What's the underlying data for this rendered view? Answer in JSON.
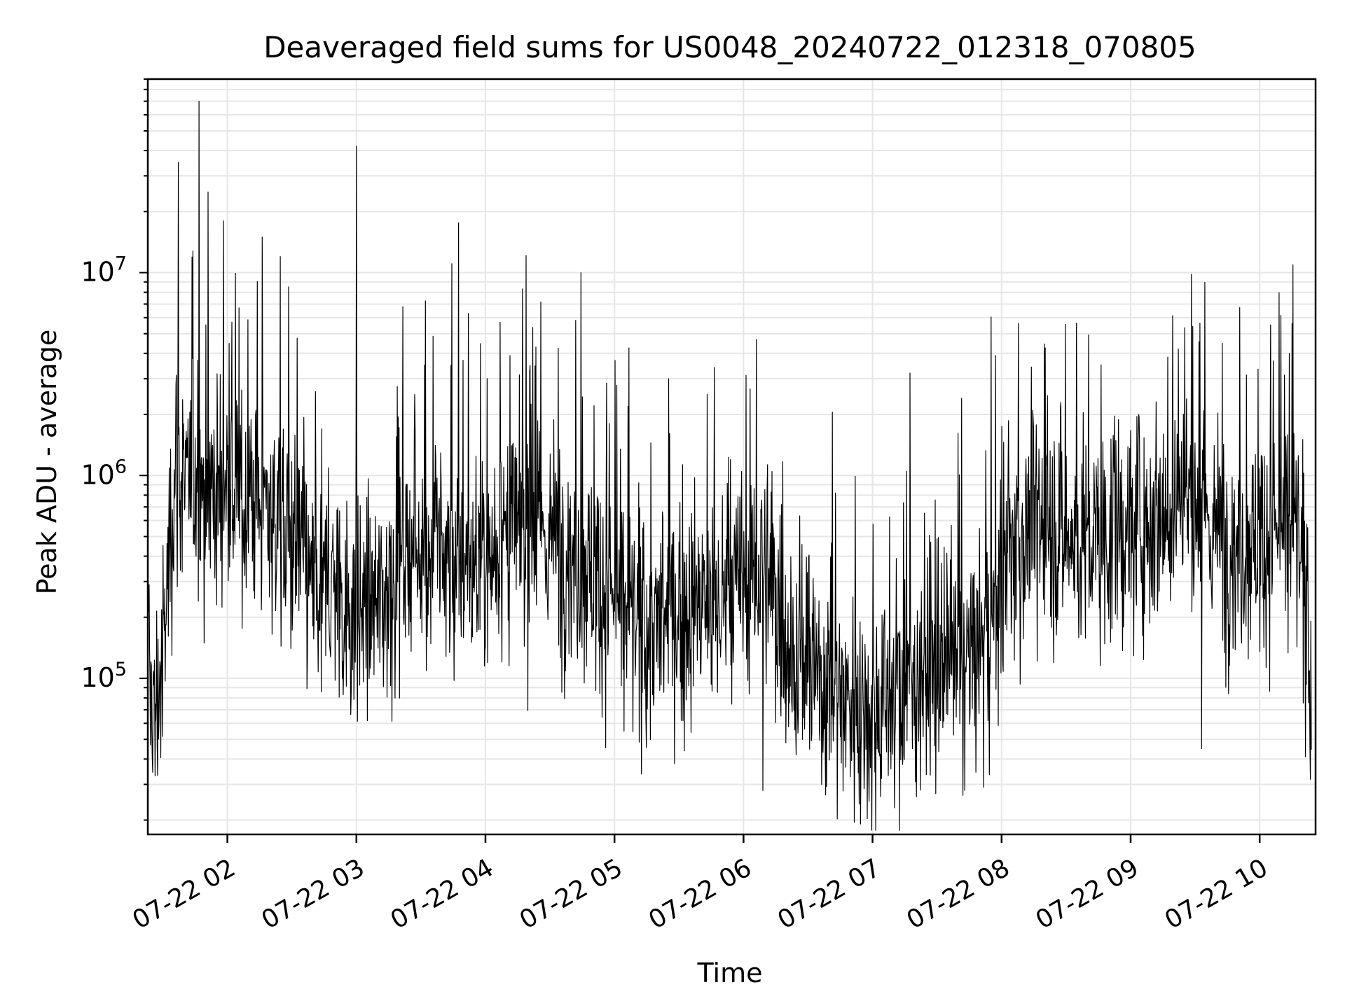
{
  "chart_data": {
    "type": "line",
    "title": "Deaveraged field sums for US0048_20240722_012318_070805",
    "xlabel": "Time",
    "ylabel": "Peak ADU - average",
    "xscale": "time",
    "yscale": "log",
    "xlim": [
      "2024-07-22 01:23",
      "2024-07-22 10:26"
    ],
    "ylim": [
      17000,
      90000000
    ],
    "grid": "major and minor",
    "x_tick_labels": [
      "07-22 02",
      "07-22 03",
      "07-22 04",
      "07-22 05",
      "07-22 06",
      "07-22 07",
      "07-22 08",
      "07-22 09",
      "07-22 10"
    ],
    "x_tick_hours": [
      2,
      3,
      4,
      5,
      6,
      7,
      8,
      9,
      10
    ],
    "y_tick_labels": [
      {
        "value": 100000,
        "base": "10",
        "exp": "5"
      },
      {
        "value": 1000000,
        "base": "10",
        "exp": "6"
      },
      {
        "value": 10000000,
        "base": "10",
        "exp": "7"
      }
    ],
    "series": [
      {
        "color": "#000000",
        "x_hours": [
          1.39,
          1.45,
          1.5,
          1.55,
          1.6,
          1.65,
          1.7,
          1.75,
          1.8,
          1.85,
          1.9,
          1.95,
          2.0,
          2.1,
          2.2,
          2.3,
          2.4,
          2.5,
          2.6,
          2.7,
          2.8,
          2.9,
          3.0,
          3.1,
          3.2,
          3.3,
          3.4,
          3.5,
          3.6,
          3.7,
          3.8,
          3.9,
          4.0,
          4.1,
          4.2,
          4.3,
          4.4,
          4.5,
          4.6,
          4.7,
          4.8,
          4.9,
          5.0,
          5.1,
          5.2,
          5.3,
          5.4,
          5.5,
          5.6,
          5.7,
          5.8,
          5.9,
          6.0,
          6.1,
          6.2,
          6.3,
          6.4,
          6.5,
          6.6,
          6.7,
          6.8,
          6.9,
          7.0,
          7.1,
          7.2,
          7.3,
          7.4,
          7.5,
          7.6,
          7.7,
          7.8,
          7.9,
          8.0,
          8.1,
          8.2,
          8.3,
          8.4,
          8.5,
          8.6,
          8.7,
          8.8,
          8.9,
          9.0,
          9.1,
          9.2,
          9.3,
          9.4,
          9.5,
          9.6,
          9.7,
          9.8,
          9.9,
          10.0,
          10.1,
          10.2,
          10.3,
          10.4
        ],
        "y_typical": [
          90000,
          80000,
          110000,
          450000,
          1200000,
          900000,
          800000,
          1000000,
          900000,
          950000,
          850000,
          800000,
          900000,
          700000,
          800000,
          700000,
          600000,
          500000,
          350000,
          250000,
          300000,
          250000,
          200000,
          220000,
          250000,
          350000,
          450000,
          450000,
          420000,
          400000,
          350000,
          350000,
          400000,
          450000,
          500000,
          550000,
          500000,
          500000,
          450000,
          400000,
          350000,
          300000,
          250000,
          200000,
          180000,
          170000,
          200000,
          200000,
          230000,
          220000,
          220000,
          250000,
          300000,
          350000,
          300000,
          200000,
          120000,
          110000,
          100000,
          90000,
          80000,
          75000,
          70000,
          80000,
          90000,
          100000,
          120000,
          110000,
          100000,
          110000,
          130000,
          180000,
          300000,
          450000,
          550000,
          600000,
          550000,
          500000,
          450000,
          450000,
          500000,
          500000,
          550000,
          600000,
          650000,
          700000,
          800000,
          700000,
          600000,
          500000,
          450000,
          480000,
          500000,
          550000,
          520000,
          500000,
          110000
        ],
        "peaks": [
          {
            "x_hours": 1.62,
            "value": 35000000
          },
          {
            "x_hours": 1.78,
            "value": 70000000
          },
          {
            "x_hours": 1.85,
            "value": 25000000
          },
          {
            "x_hours": 1.97,
            "value": 18000000
          },
          {
            "x_hours": 2.27,
            "value": 15000000
          },
          {
            "x_hours": 2.41,
            "value": 12000000
          },
          {
            "x_hours": 3.0,
            "value": 42000000
          },
          {
            "x_hours": 3.36,
            "value": 6800000
          },
          {
            "x_hours": 4.19,
            "value": 3900000
          },
          {
            "x_hours": 4.74,
            "value": 10000000
          },
          {
            "x_hours": 5.42,
            "value": 3000000
          },
          {
            "x_hours": 7.29,
            "value": 3200000
          },
          {
            "x_hours": 7.69,
            "value": 2400000
          },
          {
            "x_hours": 9.37,
            "value": 4200000
          },
          {
            "x_hours": 10.23,
            "value": 4000000
          }
        ],
        "troughs": [
          {
            "x_hours": 1.44,
            "value": 33000
          },
          {
            "x_hours": 6.15,
            "value": 28000
          },
          {
            "x_hours": 7.17,
            "value": 23000
          },
          {
            "x_hours": 7.49,
            "value": 27000
          },
          {
            "x_hours": 7.86,
            "value": 29000
          },
          {
            "x_hours": 9.55,
            "value": 45000
          }
        ]
      }
    ]
  }
}
